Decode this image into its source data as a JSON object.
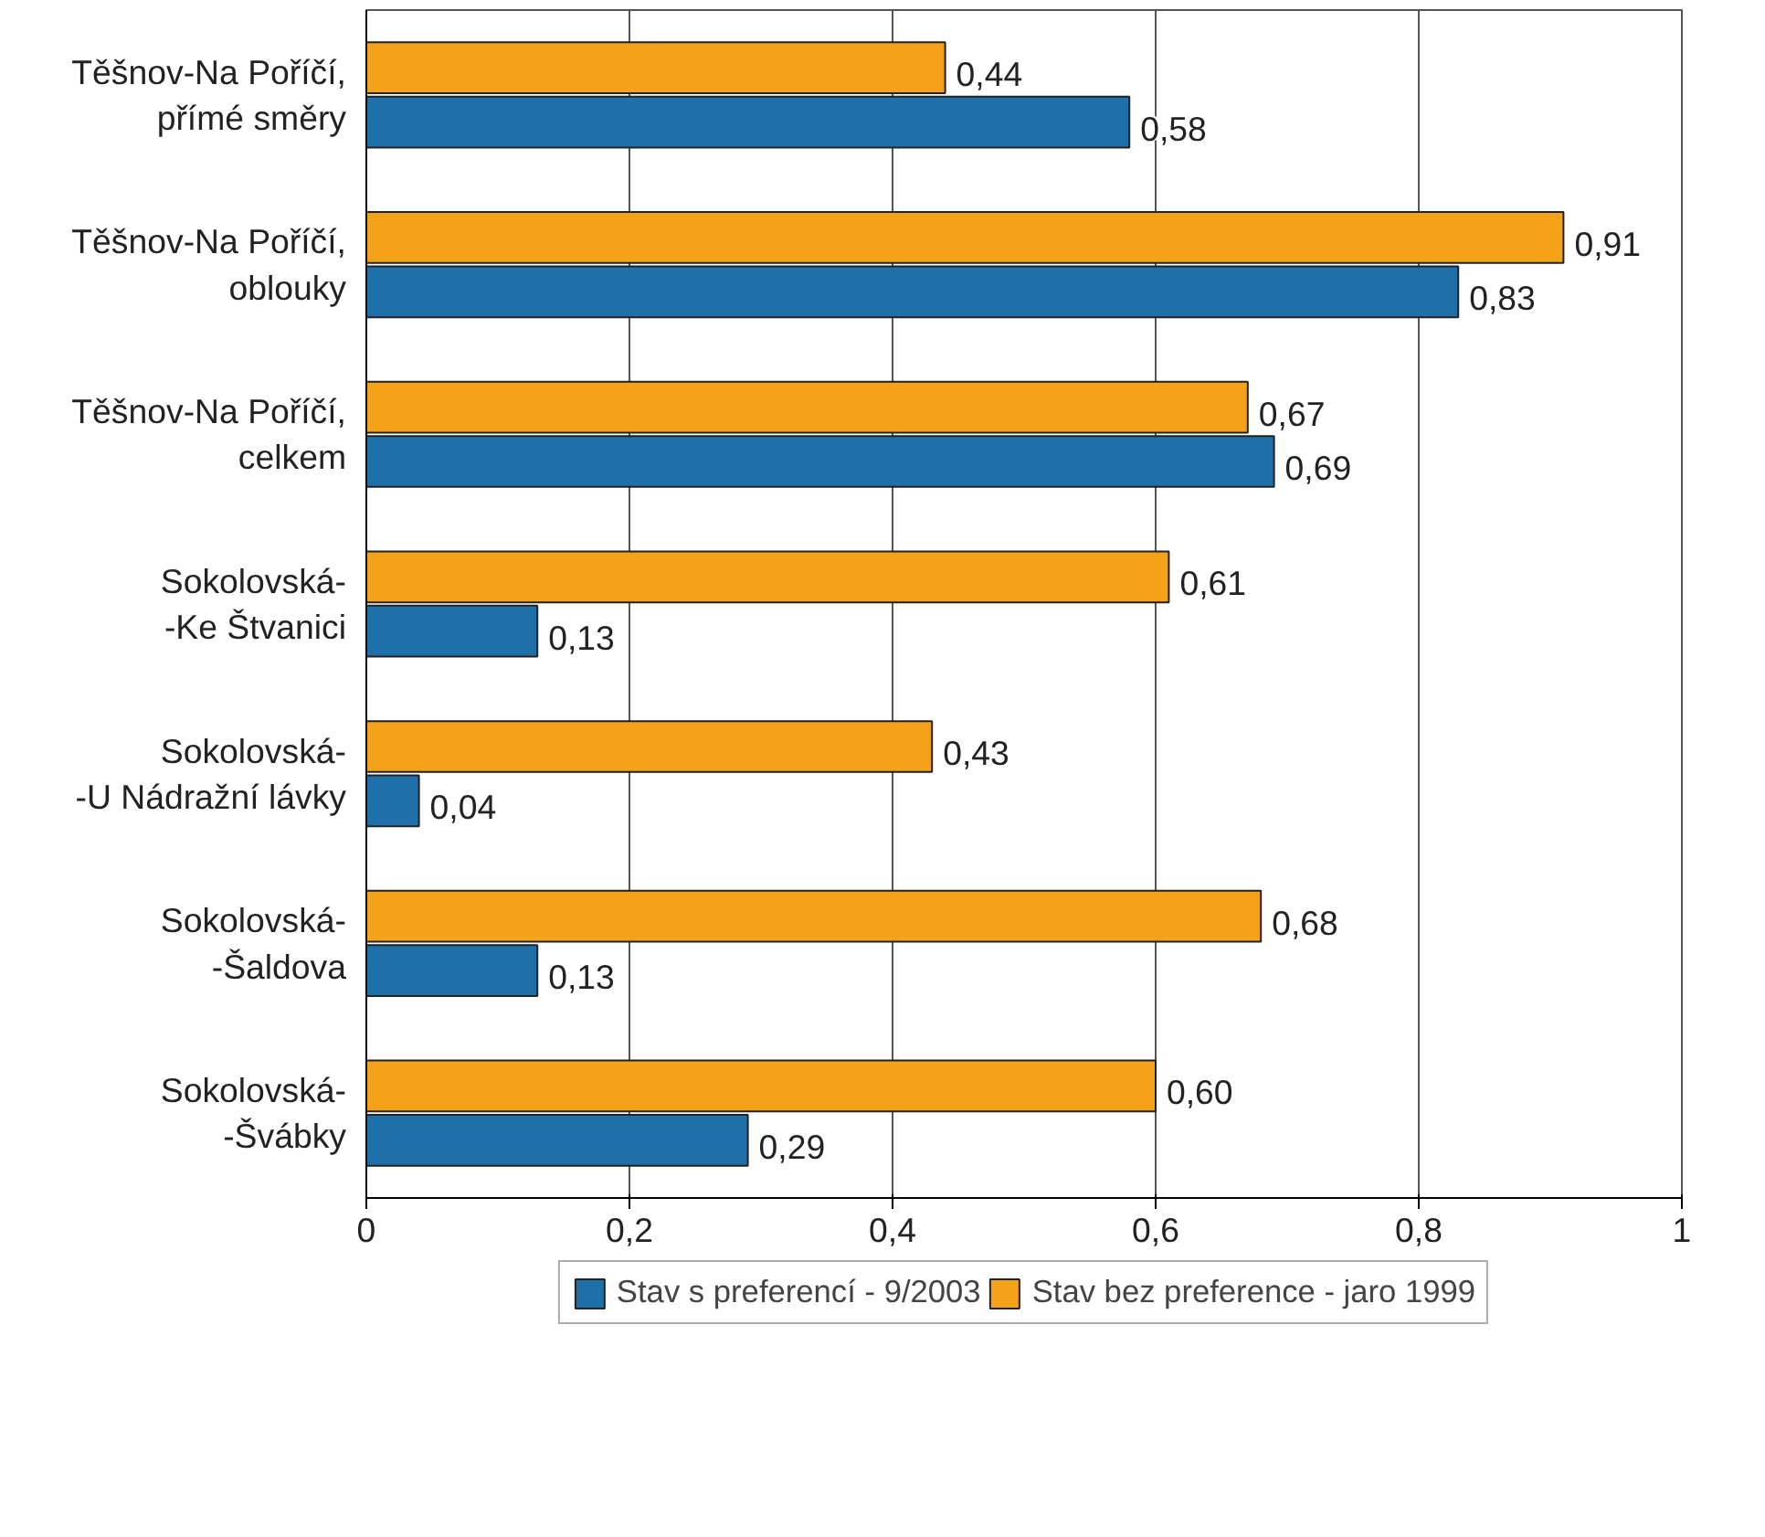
{
  "chart_data": {
    "type": "bar",
    "orientation": "horizontal",
    "categories": [
      "Těšnov-Na Poříčí,\npřímé směry",
      "Těšnov-Na Poříčí,\noblouky",
      "Těšnov-Na Poříčí,\ncelkem",
      "Sokolovská-\n-Ke Štvanici",
      "Sokolovská-\n-U Nádražní lávky",
      "Sokolovská-\n-Šaldova",
      "Sokolovská-\n-Švábky"
    ],
    "series": [
      {
        "name": "Stav s preferencí - 9/2003",
        "color": "#1f6fa8",
        "values": [
          0.58,
          0.83,
          0.69,
          0.13,
          0.04,
          0.13,
          0.29
        ],
        "value_labels": [
          "0,58",
          "0,83",
          "0,69",
          "0,13",
          "0,04",
          "0,13",
          "0,29"
        ]
      },
      {
        "name": "Stav bez preference - jaro 1999",
        "color": "#f5a21b",
        "values": [
          0.44,
          0.91,
          0.67,
          0.61,
          0.43,
          0.68,
          0.6
        ],
        "value_labels": [
          "0,44",
          "0,91",
          "0,67",
          "0,61",
          "0,43",
          "0,68",
          "0,60"
        ]
      }
    ],
    "xlim": [
      0,
      1
    ],
    "xticks": [
      0,
      {
        "value": 0.2,
        "label": "0,2"
      },
      {
        "value": 0.4,
        "label": "0,4"
      },
      {
        "value": 0.6,
        "label": "0,6"
      },
      {
        "value": 0.8,
        "label": "0,8"
      },
      1
    ],
    "grid": "x",
    "legend": "bottom"
  }
}
